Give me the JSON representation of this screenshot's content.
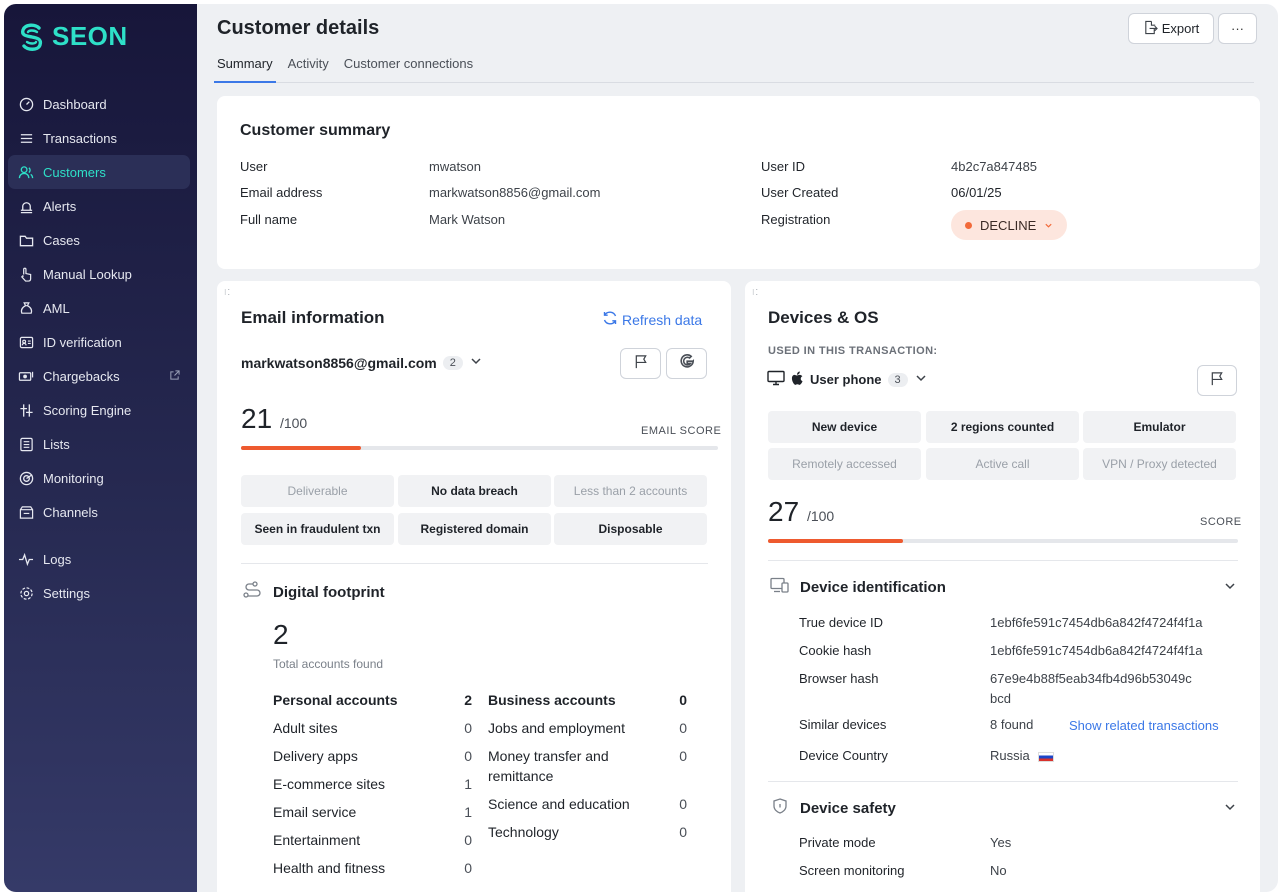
{
  "brand": {
    "name": "SEON",
    "color": "#2ee0c8"
  },
  "sidebar": {
    "items": [
      {
        "label": "Dashboard",
        "icon": "dashboard-icon",
        "active": false
      },
      {
        "label": "Transactions",
        "icon": "list-lines-icon",
        "active": false
      },
      {
        "label": "Customers",
        "icon": "users-icon",
        "active": true
      },
      {
        "label": "Alerts",
        "icon": "alarm-icon",
        "active": false
      },
      {
        "label": "Cases",
        "icon": "folder-icon",
        "active": false
      },
      {
        "label": "Manual Lookup",
        "icon": "hand-pointer-icon",
        "active": false
      },
      {
        "label": "AML",
        "icon": "money-bag-icon",
        "active": false
      },
      {
        "label": "ID verification",
        "icon": "id-card-icon",
        "active": false
      },
      {
        "label": "Chargebacks",
        "icon": "chargeback-icon",
        "active": false,
        "external": true
      },
      {
        "label": "Scoring Engine",
        "icon": "sliders-icon",
        "active": false
      },
      {
        "label": "Lists",
        "icon": "list-doc-icon",
        "active": false
      },
      {
        "label": "Monitoring",
        "icon": "monitoring-icon",
        "active": false
      },
      {
        "label": "Channels",
        "icon": "channels-icon",
        "active": false
      },
      {
        "label": "Logs",
        "icon": "pulse-icon",
        "active": false
      },
      {
        "label": "Settings",
        "icon": "gear-icon",
        "active": false
      }
    ]
  },
  "header": {
    "title": "Customer details",
    "export_label": "Export",
    "more_label": "···",
    "tabs": [
      "Summary",
      "Activity",
      "Customer connections"
    ]
  },
  "summary": {
    "title": "Customer summary",
    "left": [
      {
        "label": "User",
        "value": "mwatson"
      },
      {
        "label": "Email address",
        "value": "markwatson8856@gmail.com"
      },
      {
        "label": "Full name",
        "value": "Mark Watson"
      }
    ],
    "right": [
      {
        "label": "User ID",
        "value": "4b2c7a847485"
      },
      {
        "label": "User Created",
        "value": "06/01/25"
      },
      {
        "label": "Registration",
        "value": "DECLINE"
      }
    ]
  },
  "email": {
    "title": "Email information",
    "refresh_label": "Refresh data",
    "address": "markwatson8856@gmail.com",
    "address_count": "2",
    "score": "21",
    "score_max": "/100",
    "score_fraction": 0.21,
    "score_label": "EMAIL SCORE",
    "tags": [
      {
        "label": "Deliverable",
        "muted": true
      },
      {
        "label": "No data breach",
        "muted": false
      },
      {
        "label": "Less than 2 accounts",
        "muted": true
      },
      {
        "label": "Seen in fraudulent txn",
        "muted": false
      },
      {
        "label": "Registered domain",
        "muted": false
      },
      {
        "label": "Disposable",
        "muted": false
      }
    ],
    "footprint": {
      "title": "Digital footprint",
      "total": "2",
      "total_label": "Total accounts found",
      "personal": [
        {
          "label": "Personal accounts",
          "value": "2"
        },
        {
          "label": "Adult sites",
          "value": "0"
        },
        {
          "label": "Delivery apps",
          "value": "0"
        },
        {
          "label": "E-commerce sites",
          "value": "1"
        },
        {
          "label": "Email service",
          "value": "1"
        },
        {
          "label": "Entertainment",
          "value": "0"
        },
        {
          "label": "Health and fitness",
          "value": "0"
        }
      ],
      "business": [
        {
          "label": "Business accounts",
          "value": "0"
        },
        {
          "label": "Jobs and employment",
          "value": "0"
        },
        {
          "label": "Money transfer and",
          "label2": "remittance",
          "value": "0"
        },
        {
          "label": "Science and education",
          "value": "0"
        },
        {
          "label": "Technology",
          "value": "0"
        }
      ]
    }
  },
  "devices": {
    "title": "Devices & OS",
    "used_label": "USED IN THIS TRANSACTION:",
    "device_name": "User phone",
    "device_count": "3",
    "tags": [
      {
        "label": "New device",
        "muted": false
      },
      {
        "label": "2 regions counted",
        "muted": false
      },
      {
        "label": "Emulator",
        "muted": false
      },
      {
        "label": "Remotely accessed",
        "muted": true
      },
      {
        "label": "Active call",
        "muted": true
      },
      {
        "label": "VPN / Proxy detected",
        "muted": true
      }
    ],
    "score": "27",
    "score_max": "/100",
    "score_fraction": 0.27,
    "score_label": "SCORE",
    "identification": {
      "title": "Device identification",
      "rows": [
        {
          "label": "True device ID",
          "value": "1ebf6fe591c7454db6a842f4724f4f1a"
        },
        {
          "label": "Cookie hash",
          "value": "1ebf6fe591c7454db6a842f4724f4f1a"
        },
        {
          "label": "Browser hash",
          "value": "67e9e4b88f5eab34fb4d96b53049c",
          "value2": "bcd"
        },
        {
          "label": "Similar devices",
          "value": "8 found",
          "link": "Show related transactions"
        },
        {
          "label": "Device Country",
          "value": "Russia"
        }
      ]
    },
    "safety": {
      "title": "Device safety",
      "rows": [
        {
          "label": "Private mode",
          "value": "Yes"
        },
        {
          "label": "Screen monitoring",
          "value": "No"
        }
      ]
    }
  }
}
